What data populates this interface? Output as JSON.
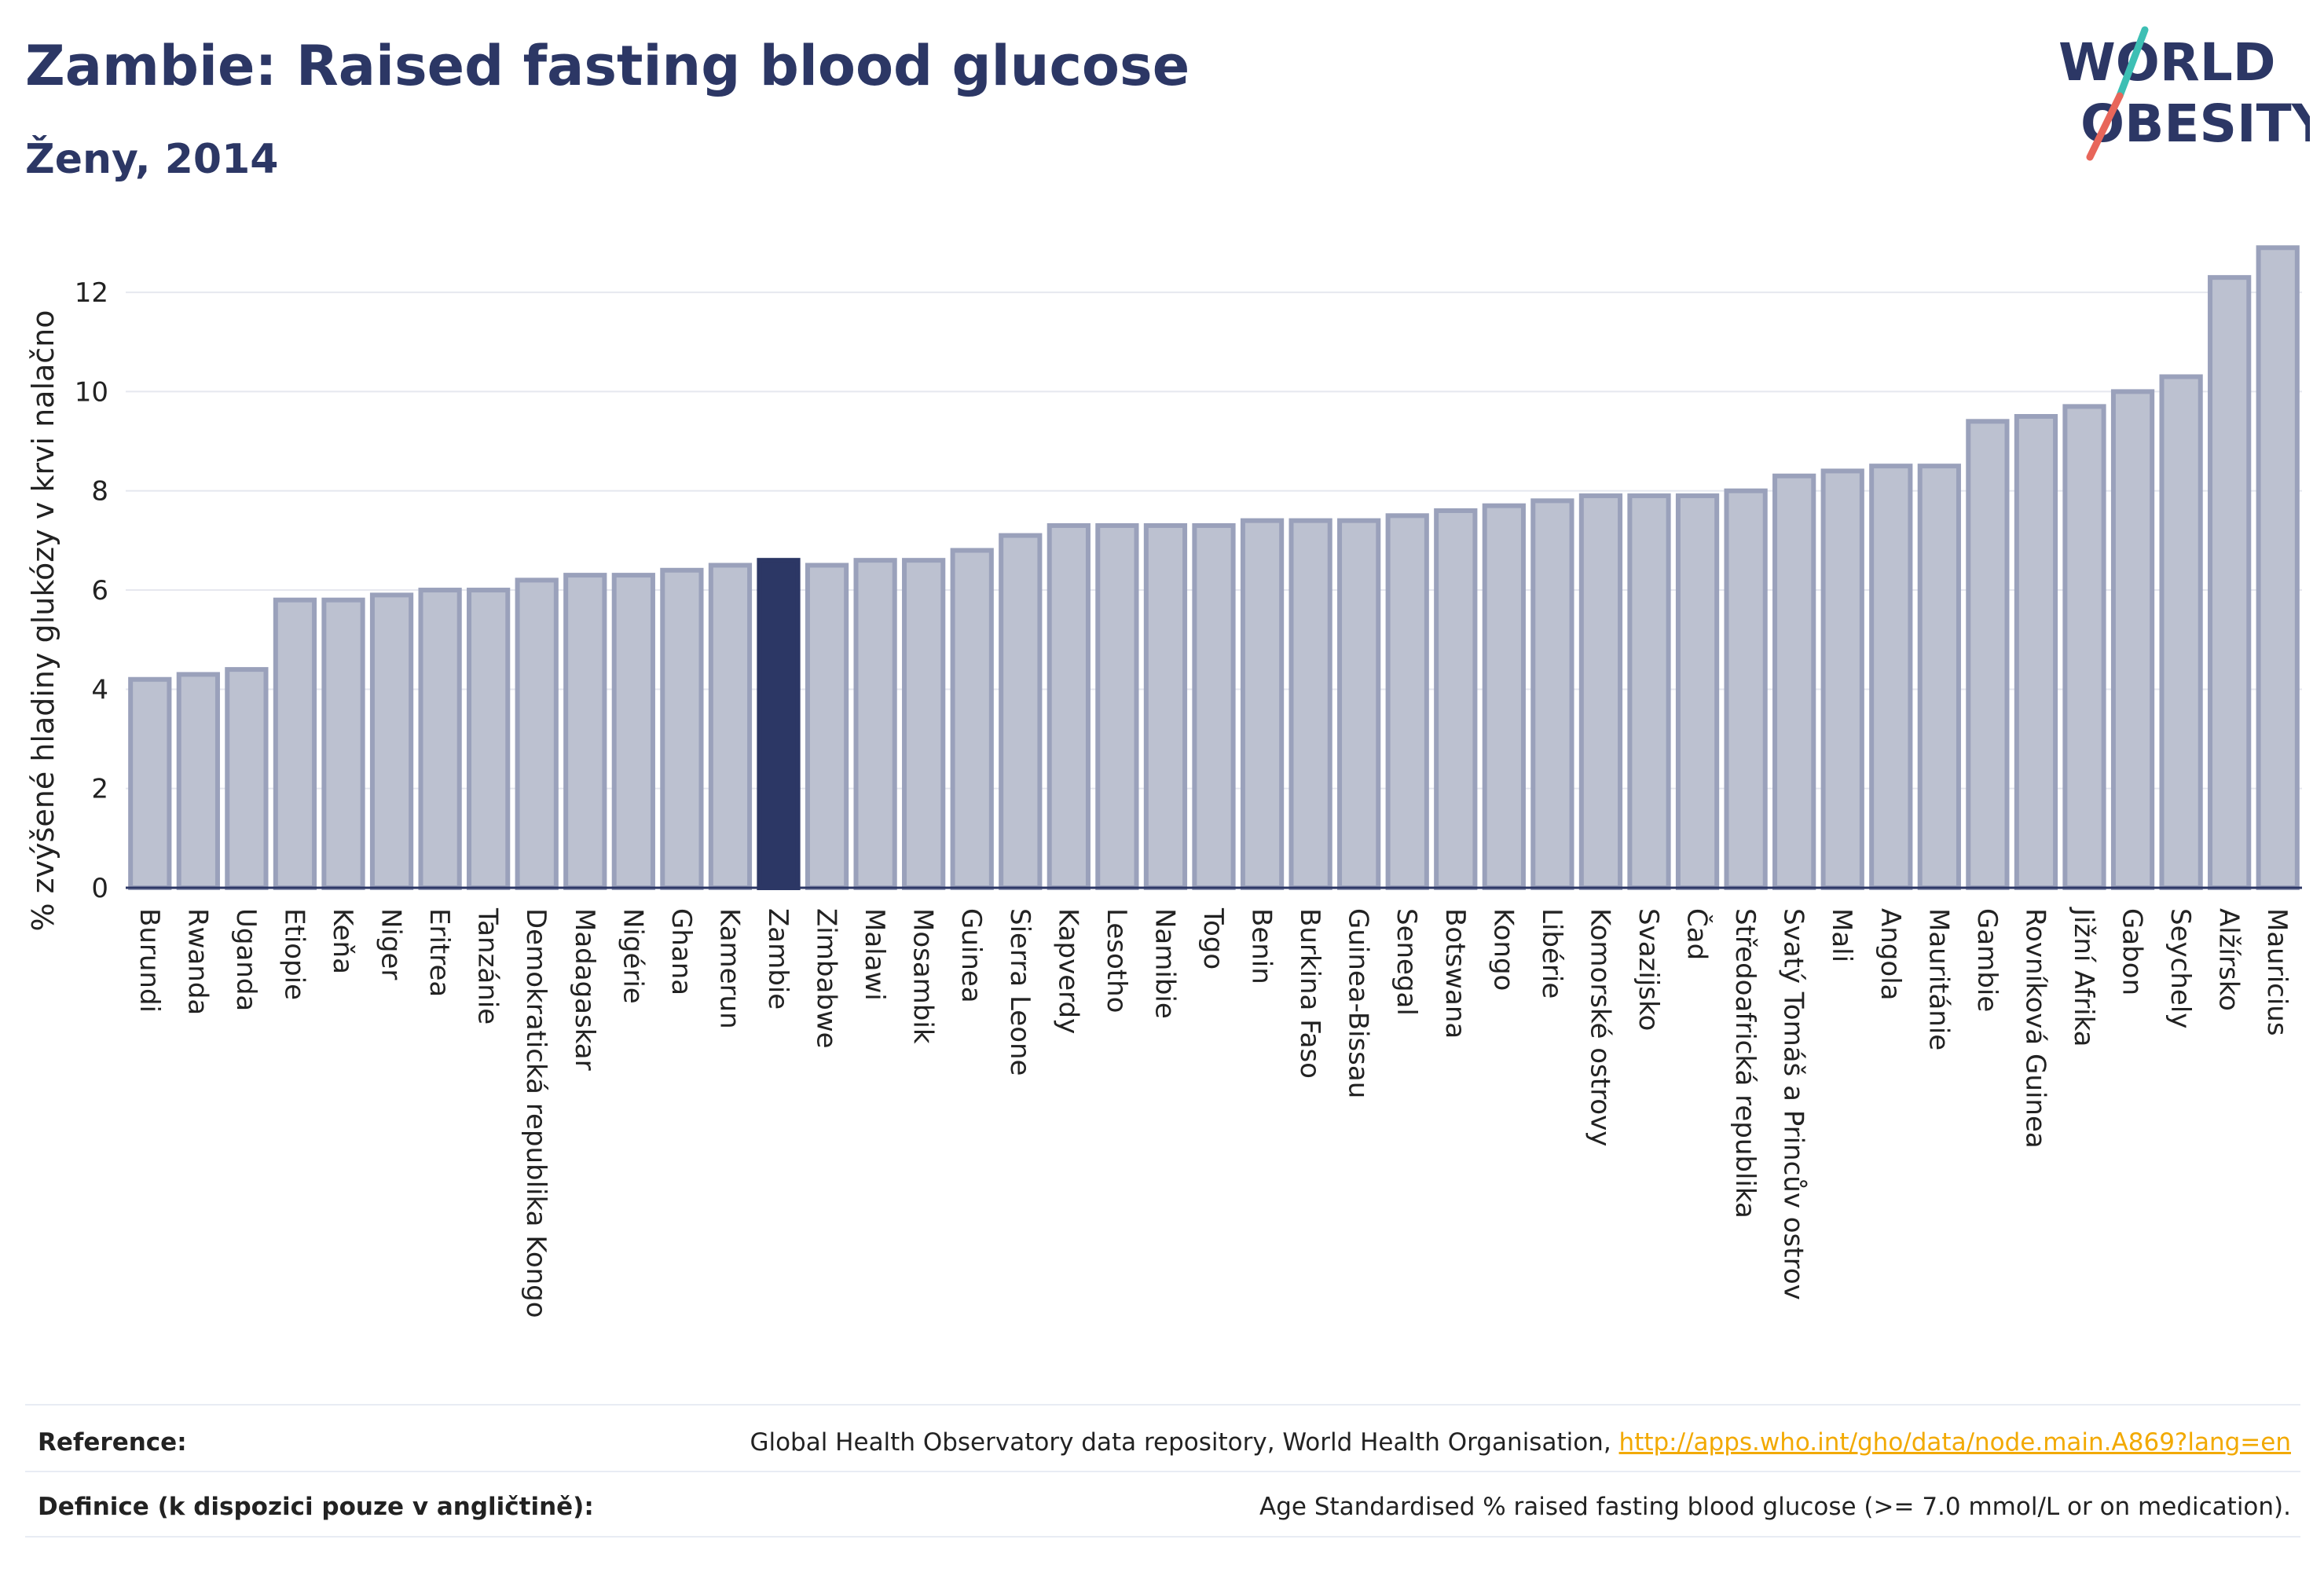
{
  "header": {
    "title": "Zambie: Raised fasting blood glucose",
    "subtitle": "Ženy, 2014"
  },
  "logo": {
    "line1": "WORLD",
    "line2": "OBESITY",
    "brand_color": "#2c3765",
    "slash_colors": [
      "#3dbfb4",
      "#e8665a"
    ]
  },
  "colors": {
    "bar_fill": "#bcc1d0",
    "bar_stroke": "#9aa1bb",
    "highlight_fill": "#2c3765",
    "grid": "#e6e8ef",
    "axis": "#2c3765"
  },
  "chart_data": {
    "type": "bar",
    "title": "Zambie: Raised fasting blood glucose",
    "subtitle": "Ženy, 2014",
    "xlabel": "",
    "ylabel": "% zvýšené hladiny glukózy v krvi nalačno",
    "ylim": [
      0,
      13.3
    ],
    "yticks": [
      0,
      2,
      4,
      6,
      8,
      10,
      12
    ],
    "grid": true,
    "highlight": "Zambie",
    "categories": [
      "Burundi",
      "Rwanda",
      "Uganda",
      "Etiopie",
      "Keňa",
      "Niger",
      "Eritrea",
      "Tanzánie",
      "Demokratická republika Kongo",
      "Madagaskar",
      "Nigérie",
      "Ghana",
      "Kamerun",
      "Zambie",
      "Zimbabwe",
      "Malawi",
      "Mosambik",
      "Guinea",
      "Sierra Leone",
      "Kapverdy",
      "Lesotho",
      "Namibie",
      "Togo",
      "Benin",
      "Burkina Faso",
      "Guinea-Bissau",
      "Senegal",
      "Botswana",
      "Kongo",
      "Libérie",
      "Komorské ostrovy",
      "Svazijsko",
      "Čad",
      "Středoafrická republika",
      "Svatý Tomáš a Princův ostrov",
      "Mali",
      "Angola",
      "Mauritánie",
      "Gambie",
      "Rovníková Guinea",
      "Jižní Afrika",
      "Gabon",
      "Seychely",
      "Alžírsko",
      "Mauricius"
    ],
    "values": [
      4.2,
      4.3,
      4.4,
      5.8,
      5.8,
      5.9,
      6.0,
      6.0,
      6.2,
      6.3,
      6.3,
      6.4,
      6.5,
      6.6,
      6.5,
      6.6,
      6.6,
      6.8,
      7.1,
      7.3,
      7.3,
      7.3,
      7.3,
      7.4,
      7.4,
      7.4,
      7.5,
      7.6,
      7.7,
      7.8,
      7.9,
      7.9,
      7.9,
      8.0,
      8.3,
      8.4,
      8.5,
      8.5,
      9.4,
      9.5,
      9.7,
      10.0,
      10.3,
      12.3,
      12.9
    ]
  },
  "footer": {
    "reference_label": "Reference:",
    "reference_text": "Global Health Observatory data repository, World Health Organisation, ",
    "reference_link": "http://apps.who.int/gho/data/node.main.A869?lang=en",
    "definition_label": "Definice (k dispozici pouze v angličtině):",
    "definition_text": "Age Standardised % raised fasting blood glucose (>= 7.0 mmol/L or on medication)."
  }
}
